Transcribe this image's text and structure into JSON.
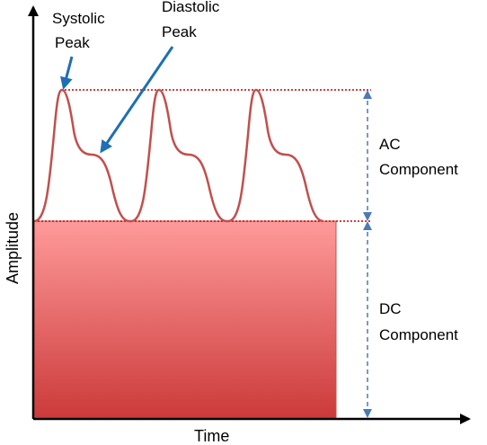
{
  "diagram": {
    "annotations": {
      "systolic_line1": "Systolic",
      "systolic_line2": "Peak",
      "diastolic_line1": "Diastolic",
      "diastolic_line2": "Peak",
      "ac_line1": "AC",
      "ac_line2": "Component",
      "dc_line1": "DC",
      "dc_line2": "Component"
    },
    "axes": {
      "x_label": "Time",
      "y_label": "Amplitude"
    },
    "colors": {
      "waveform": "#c0504d",
      "dc_fill_top": "#ff9a9a",
      "dc_fill_bottom": "#cc3a3a",
      "reference_line": "#c00000",
      "arrow": "#1f6fb2",
      "dimension": "#4a7ab8",
      "axis": "#000000"
    },
    "waveform": {
      "cycles": 3
    }
  }
}
